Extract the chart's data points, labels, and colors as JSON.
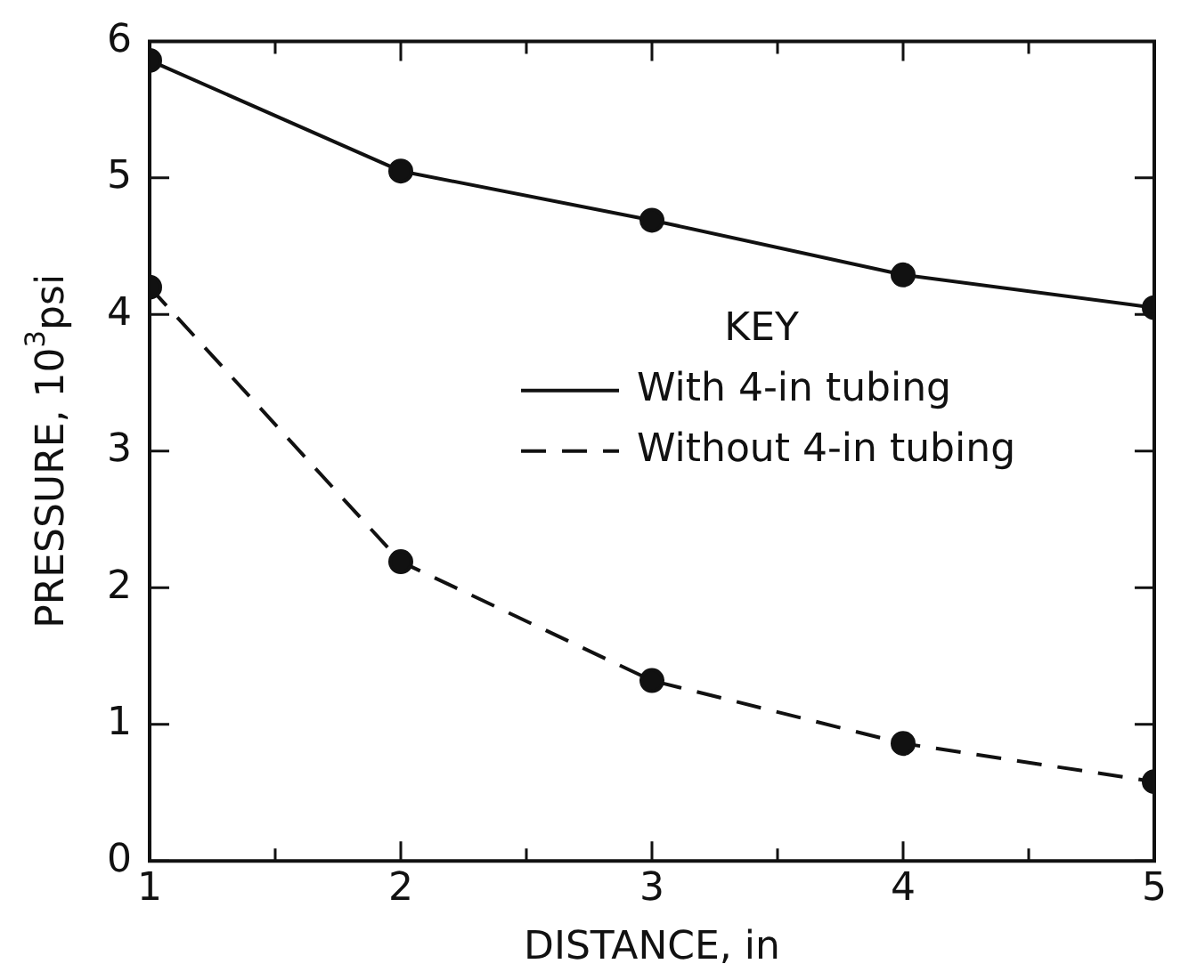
{
  "chart_data": {
    "type": "line",
    "xlabel": "DISTANCE, in",
    "ylabel": "PRESSURE, 10$^{3}$psi",
    "legend_title": "KEY",
    "legend": "right",
    "marker": "circle",
    "grid": false,
    "x": [
      1,
      2,
      3,
      4,
      5
    ],
    "xlim": [
      1,
      5
    ],
    "xticks": [
      1,
      {
        "value": 1.5,
        "label": null
      },
      2,
      {
        "value": 2.5,
        "label": null
      },
      3,
      {
        "value": 3.5,
        "label": null
      },
      4,
      {
        "value": 4.5,
        "label": null
      },
      5
    ],
    "ylim": [
      0,
      6
    ],
    "yticks": [
      0,
      1,
      2,
      3,
      4,
      5,
      6
    ],
    "series": [
      {
        "name": "With 4-in tubing",
        "color": "#111111",
        "line_style": "solid",
        "values": [
          5.86,
          5.05,
          4.69,
          4.29,
          4.05
        ]
      },
      {
        "name": "Without 4-in tubing",
        "color": "#111111",
        "line_style": "dashed",
        "values": [
          4.2,
          2.19,
          1.32,
          0.86,
          0.58
        ]
      }
    ]
  }
}
